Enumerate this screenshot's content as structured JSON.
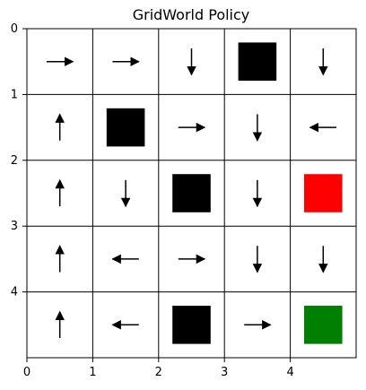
{
  "chart_data": {
    "type": "gridworld",
    "title": "GridWorld Policy",
    "xlim": [
      0,
      5
    ],
    "ylim": [
      5,
      0
    ],
    "x_ticks": [
      0,
      1,
      2,
      3,
      4
    ],
    "y_ticks": [
      0,
      1,
      2,
      3,
      4
    ],
    "grid": true,
    "colors": {
      "wall": "#000000",
      "trap": "#ff0000",
      "goal": "#008000",
      "arrow": "#000000",
      "gridline": "#000000"
    },
    "cells": [
      {
        "row": 0,
        "col": 0,
        "type": "arrow",
        "direction": "right"
      },
      {
        "row": 0,
        "col": 1,
        "type": "arrow",
        "direction": "right"
      },
      {
        "row": 0,
        "col": 2,
        "type": "arrow",
        "direction": "down"
      },
      {
        "row": 0,
        "col": 3,
        "type": "wall"
      },
      {
        "row": 0,
        "col": 4,
        "type": "arrow",
        "direction": "down"
      },
      {
        "row": 1,
        "col": 0,
        "type": "arrow",
        "direction": "up"
      },
      {
        "row": 1,
        "col": 1,
        "type": "wall"
      },
      {
        "row": 1,
        "col": 2,
        "type": "arrow",
        "direction": "right"
      },
      {
        "row": 1,
        "col": 3,
        "type": "arrow",
        "direction": "down"
      },
      {
        "row": 1,
        "col": 4,
        "type": "arrow",
        "direction": "left"
      },
      {
        "row": 2,
        "col": 0,
        "type": "arrow",
        "direction": "up"
      },
      {
        "row": 2,
        "col": 1,
        "type": "arrow",
        "direction": "down"
      },
      {
        "row": 2,
        "col": 2,
        "type": "wall"
      },
      {
        "row": 2,
        "col": 3,
        "type": "arrow",
        "direction": "down"
      },
      {
        "row": 2,
        "col": 4,
        "type": "trap"
      },
      {
        "row": 3,
        "col": 0,
        "type": "arrow",
        "direction": "up"
      },
      {
        "row": 3,
        "col": 1,
        "type": "arrow",
        "direction": "left"
      },
      {
        "row": 3,
        "col": 2,
        "type": "arrow",
        "direction": "right"
      },
      {
        "row": 3,
        "col": 3,
        "type": "arrow",
        "direction": "down"
      },
      {
        "row": 3,
        "col": 4,
        "type": "arrow",
        "direction": "down"
      },
      {
        "row": 4,
        "col": 0,
        "type": "arrow",
        "direction": "up"
      },
      {
        "row": 4,
        "col": 1,
        "type": "arrow",
        "direction": "left"
      },
      {
        "row": 4,
        "col": 2,
        "type": "wall"
      },
      {
        "row": 4,
        "col": 3,
        "type": "arrow",
        "direction": "right"
      },
      {
        "row": 4,
        "col": 4,
        "type": "goal"
      }
    ]
  }
}
